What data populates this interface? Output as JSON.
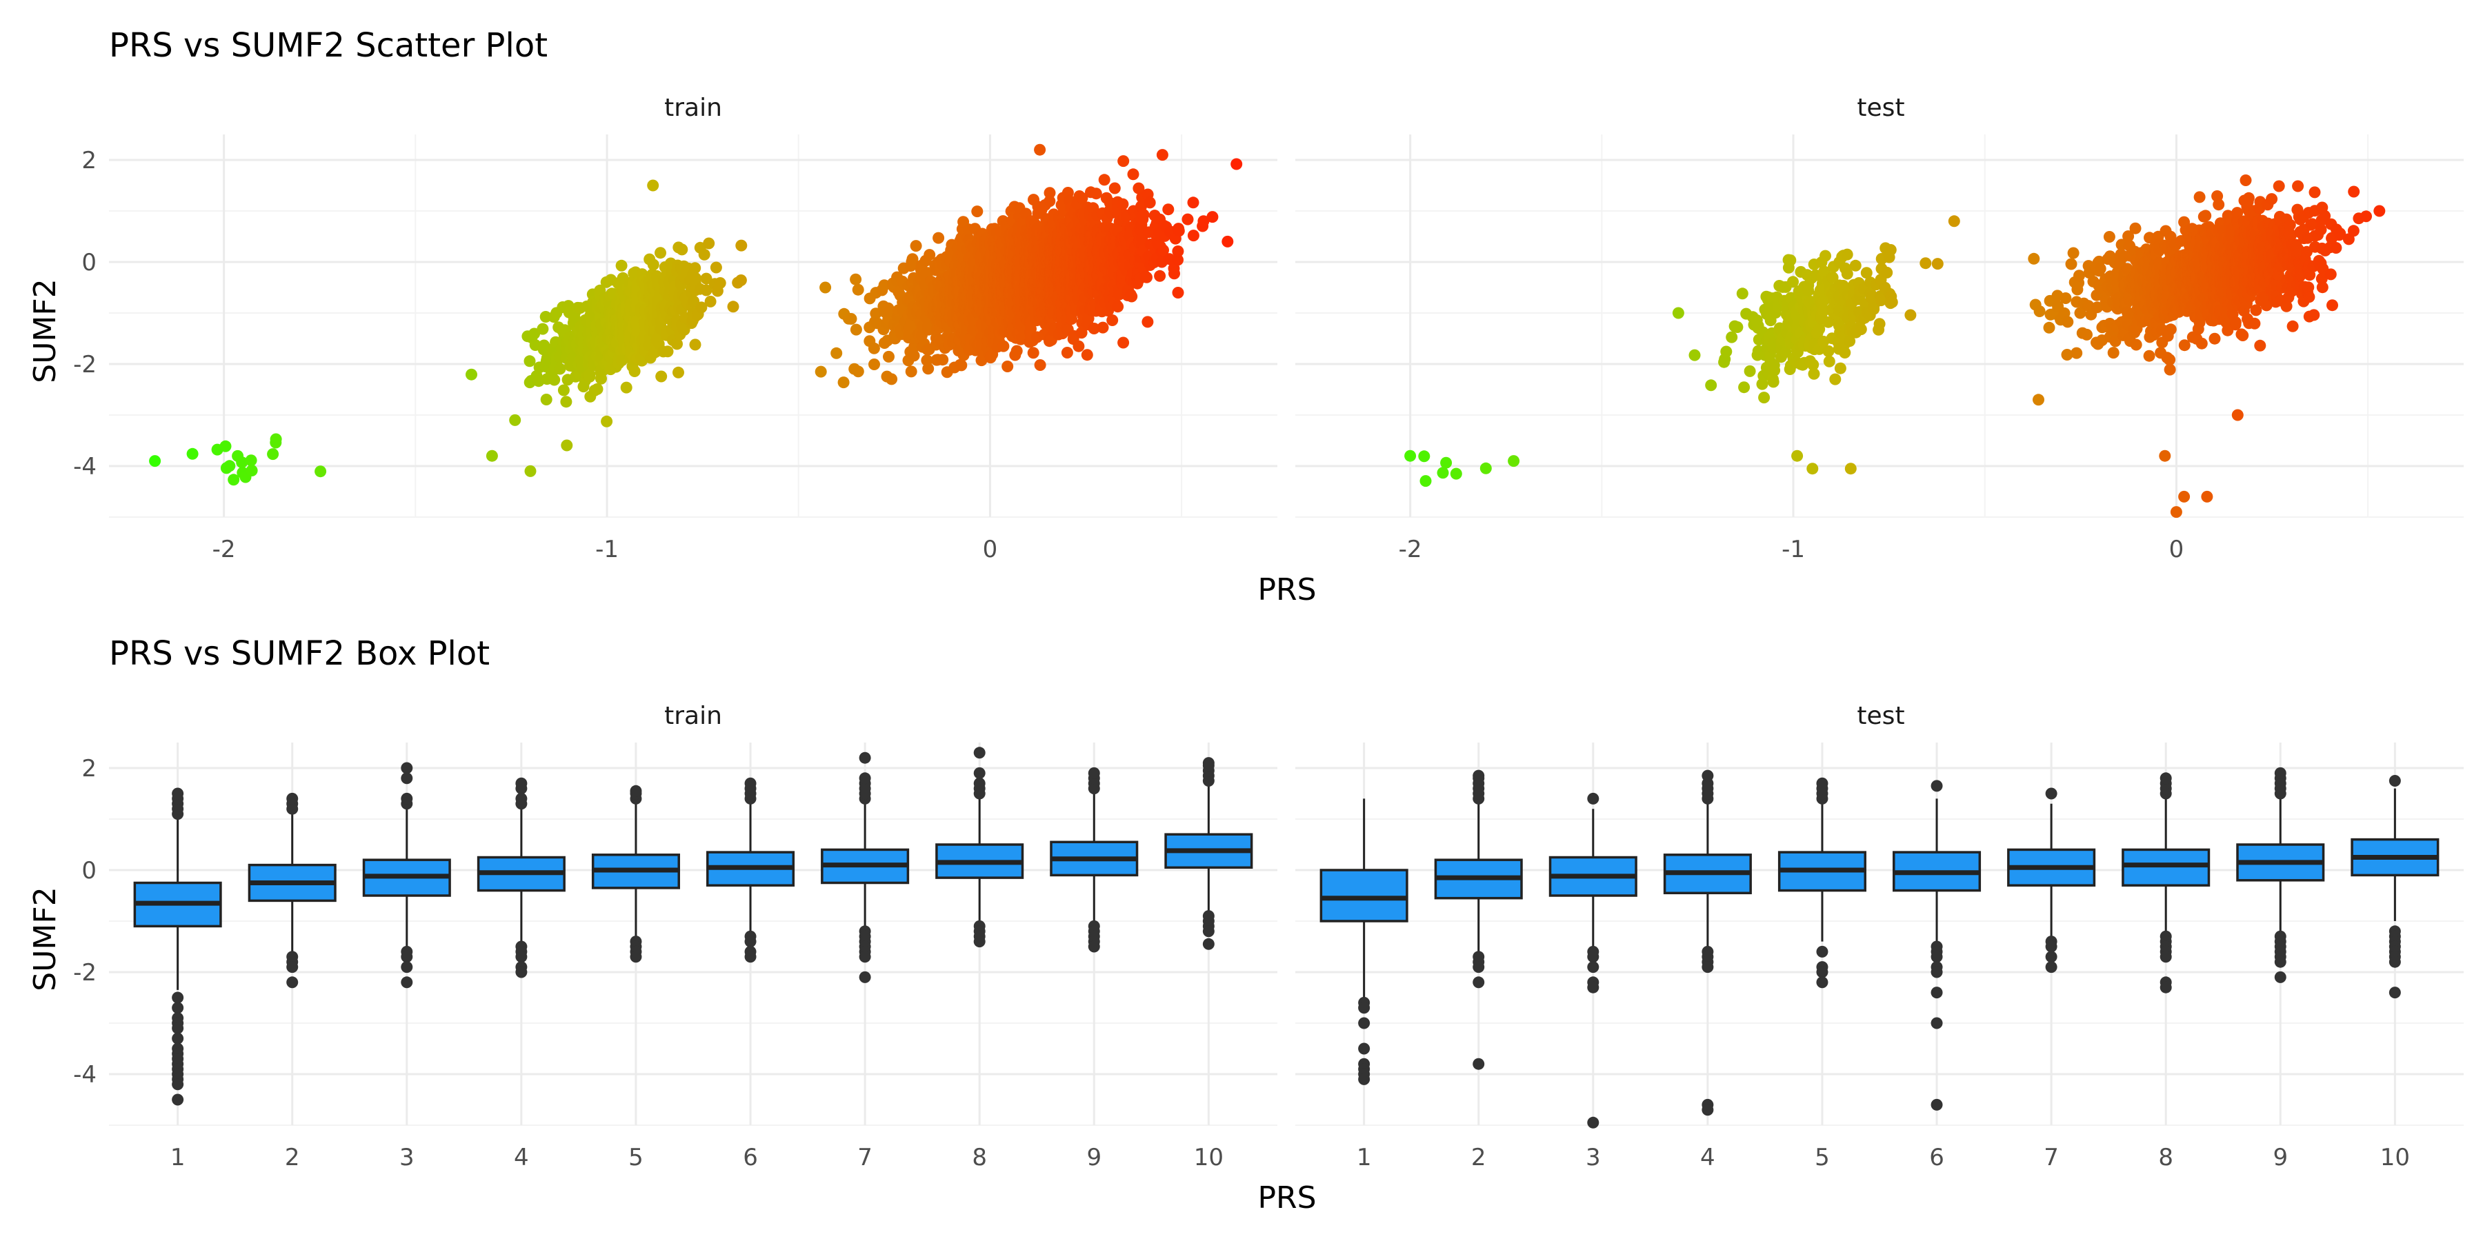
{
  "figure": {
    "scatter_title": "PRS vs SUMF2 Scatter Plot",
    "box_title": "PRS vs SUMF2 Box Plot",
    "x_axis_label": "PRS",
    "y_axis_label": "SUMF2",
    "panels": [
      "train",
      "test"
    ]
  },
  "colors": {
    "gradient_low": "#33ff00",
    "gradient_mid": "#c4b800",
    "gradient_high": "#ff2200",
    "box_fill": "#2196f3",
    "box_line": "#222222",
    "outlier": "#333333"
  },
  "chart_data": [
    {
      "type": "scatter",
      "title": "PRS vs SUMF2 Scatter Plot",
      "xlabel": "PRS",
      "ylabel": "SUMF2",
      "facets": [
        "train",
        "test"
      ],
      "xlim": [
        -2.3,
        0.75
      ],
      "ylim": [
        -5.0,
        2.5
      ],
      "x_ticks": [
        -2,
        -1,
        0
      ],
      "y_ticks": [
        2,
        0,
        -2,
        -4
      ],
      "grid": true,
      "color_encoding": "gradient by PRS (green low to red high), no legend",
      "series": [
        {
          "facet": "train",
          "clusters": [
            {
              "center": [
                -1.97,
                -3.9
              ],
              "sd": [
                0.08,
                0.28
              ],
              "n": 16
            },
            {
              "center": [
                -0.95,
                -1.2
              ],
              "sd": [
                0.1,
                0.55
              ],
              "n": 700,
              "corr": 0.55
            },
            {
              "center": [
                0.1,
                -0.3
              ],
              "sd": [
                0.15,
                0.6
              ],
              "n": 3000,
              "corr": 0.5
            }
          ],
          "points": [
            [
              -2.18,
              -3.9
            ],
            [
              -1.2,
              -4.1
            ],
            [
              -1.3,
              -3.8
            ],
            [
              -1.24,
              -3.1
            ],
            [
              -0.88,
              1.5
            ],
            [
              0.13,
              2.2
            ],
            [
              0.45,
              2.1
            ],
            [
              -0.43,
              -0.5
            ],
            [
              0.62,
              0.4
            ]
          ]
        },
        {
          "facet": "test",
          "clusters": [
            {
              "center": [
                -1.86,
                -3.9
              ],
              "sd": [
                0.06,
                0.25
              ],
              "n": 5
            },
            {
              "center": [
                -0.95,
                -1.1
              ],
              "sd": [
                0.1,
                0.55
              ],
              "n": 320,
              "corr": 0.5
            },
            {
              "center": [
                0.08,
                -0.2
              ],
              "sd": [
                0.14,
                0.55
              ],
              "n": 1500,
              "corr": 0.45
            }
          ],
          "points": [
            [
              -2.0,
              -3.8
            ],
            [
              -1.88,
              -4.15
            ],
            [
              -1.73,
              -3.9
            ],
            [
              -1.3,
              -1.0
            ],
            [
              -0.99,
              -3.8
            ],
            [
              -0.95,
              -4.05
            ],
            [
              -0.85,
              -4.05
            ],
            [
              0.0,
              -4.9
            ],
            [
              0.02,
              -4.6
            ],
            [
              0.08,
              -4.6
            ],
            [
              -0.03,
              -3.8
            ],
            [
              0.53,
              1.0
            ],
            [
              -0.58,
              0.8
            ],
            [
              -0.36,
              -2.7
            ],
            [
              0.16,
              -3.0
            ]
          ]
        }
      ]
    },
    {
      "type": "box",
      "title": "PRS vs SUMF2 Box Plot",
      "xlabel": "PRS",
      "ylabel": "SUMF2",
      "facets": [
        "train",
        "test"
      ],
      "categories": [
        "1",
        "2",
        "3",
        "4",
        "5",
        "6",
        "7",
        "8",
        "9",
        "10"
      ],
      "ylim": [
        -5.0,
        2.5
      ],
      "y_ticks": [
        2,
        0,
        -2,
        -4
      ],
      "grid": true,
      "series": [
        {
          "facet": "train",
          "boxes": [
            {
              "q1": -1.1,
              "median": -0.65,
              "q3": -0.25,
              "whisker_low": -2.35,
              "whisker_high": 1.0,
              "outliers": [
                1.1,
                1.2,
                1.3,
                1.4,
                1.5,
                -2.5,
                -2.7,
                -2.9,
                -3.0,
                -3.1,
                -3.3,
                -3.5,
                -3.6,
                -3.7,
                -3.8,
                -3.9,
                -4.0,
                -4.1,
                -4.2,
                -4.5
              ]
            },
            {
              "q1": -0.6,
              "median": -0.25,
              "q3": 0.1,
              "whisker_low": -1.6,
              "whisker_high": 1.1,
              "outliers": [
                1.2,
                1.3,
                1.4,
                -1.7,
                -1.8,
                -1.9,
                -2.2
              ]
            },
            {
              "q1": -0.5,
              "median": -0.12,
              "q3": 0.2,
              "whisker_low": -1.5,
              "whisker_high": 1.2,
              "outliers": [
                1.3,
                1.4,
                1.8,
                2.0,
                -1.6,
                -1.7,
                -1.9,
                -2.2
              ]
            },
            {
              "q1": -0.4,
              "median": -0.05,
              "q3": 0.25,
              "whisker_low": -1.4,
              "whisker_high": 1.2,
              "outliers": [
                1.3,
                1.4,
                1.6,
                1.7,
                -1.5,
                -1.6,
                -1.7,
                -1.9,
                -2.0
              ]
            },
            {
              "q1": -0.35,
              "median": 0.0,
              "q3": 0.3,
              "whisker_low": -1.3,
              "whisker_high": 1.3,
              "outliers": [
                1.4,
                1.5,
                1.55,
                -1.4,
                -1.5,
                -1.6,
                -1.7
              ]
            },
            {
              "q1": -0.3,
              "median": 0.05,
              "q3": 0.35,
              "whisker_low": -1.2,
              "whisker_high": 1.3,
              "outliers": [
                1.4,
                1.5,
                1.6,
                1.7,
                -1.3,
                -1.4,
                -1.6,
                -1.7
              ]
            },
            {
              "q1": -0.25,
              "median": 0.1,
              "q3": 0.4,
              "whisker_low": -1.1,
              "whisker_high": 1.3,
              "outliers": [
                1.4,
                1.5,
                1.6,
                1.7,
                1.8,
                2.2,
                -1.2,
                -1.3,
                -1.4,
                -1.5,
                -1.6,
                -1.7,
                -2.1
              ]
            },
            {
              "q1": -0.15,
              "median": 0.15,
              "q3": 0.5,
              "whisker_low": -1.0,
              "whisker_high": 1.4,
              "outliers": [
                1.5,
                1.6,
                1.7,
                1.9,
                2.3,
                -1.1,
                -1.2,
                -1.3,
                -1.4
              ]
            },
            {
              "q1": -0.1,
              "median": 0.22,
              "q3": 0.55,
              "whisker_low": -1.0,
              "whisker_high": 1.5,
              "outliers": [
                1.6,
                1.7,
                1.8,
                1.9,
                -1.1,
                -1.2,
                -1.3,
                -1.4,
                -1.5
              ]
            },
            {
              "q1": 0.05,
              "median": 0.38,
              "q3": 0.7,
              "whisker_low": -0.85,
              "whisker_high": 1.65,
              "outliers": [
                1.75,
                1.85,
                1.95,
                2.05,
                2.1,
                -0.9,
                -1.0,
                -1.1,
                -1.2,
                -1.45
              ]
            }
          ]
        },
        {
          "facet": "test",
          "boxes": [
            {
              "q1": -1.0,
              "median": -0.55,
              "q3": 0.0,
              "whisker_low": -2.5,
              "whisker_high": 1.4,
              "outliers": [
                -2.6,
                -2.7,
                -3.0,
                -3.5,
                -3.8,
                -3.9,
                -4.0,
                -4.1
              ]
            },
            {
              "q1": -0.55,
              "median": -0.15,
              "q3": 0.2,
              "whisker_low": -1.6,
              "whisker_high": 1.3,
              "outliers": [
                1.4,
                1.5,
                1.6,
                1.7,
                1.8,
                1.85,
                -1.7,
                -1.8,
                -1.9,
                -2.2,
                -3.8
              ]
            },
            {
              "q1": -0.5,
              "median": -0.12,
              "q3": 0.25,
              "whisker_low": -1.5,
              "whisker_high": 1.2,
              "outliers": [
                1.4,
                -1.6,
                -1.7,
                -1.9,
                -2.2,
                -2.3,
                -4.95
              ]
            },
            {
              "q1": -0.45,
              "median": -0.05,
              "q3": 0.3,
              "whisker_low": -1.5,
              "whisker_high": 1.3,
              "outliers": [
                1.4,
                1.5,
                1.6,
                1.7,
                1.85,
                -1.6,
                -1.7,
                -1.8,
                -1.9,
                -4.6,
                -4.7
              ]
            },
            {
              "q1": -0.4,
              "median": 0.0,
              "q3": 0.35,
              "whisker_low": -1.4,
              "whisker_high": 1.3,
              "outliers": [
                1.4,
                1.5,
                1.6,
                1.7,
                -1.6,
                -1.9,
                -2.0,
                -2.2
              ]
            },
            {
              "q1": -0.4,
              "median": -0.05,
              "q3": 0.35,
              "whisker_low": -1.4,
              "whisker_high": 1.4,
              "outliers": [
                1.65,
                -1.5,
                -1.6,
                -1.7,
                -1.9,
                -2.0,
                -2.4,
                -3.0,
                -4.6
              ]
            },
            {
              "q1": -0.3,
              "median": 0.05,
              "q3": 0.4,
              "whisker_low": -1.3,
              "whisker_high": 1.3,
              "outliers": [
                1.5,
                -1.4,
                -1.5,
                -1.7,
                -1.9
              ]
            },
            {
              "q1": -0.3,
              "median": 0.1,
              "q3": 0.4,
              "whisker_low": -1.2,
              "whisker_high": 1.4,
              "outliers": [
                1.5,
                1.6,
                1.7,
                1.8,
                -1.3,
                -1.4,
                -1.5,
                -1.6,
                -1.7,
                -2.2,
                -2.3
              ]
            },
            {
              "q1": -0.2,
              "median": 0.15,
              "q3": 0.5,
              "whisker_low": -1.2,
              "whisker_high": 1.4,
              "outliers": [
                1.5,
                1.6,
                1.7,
                1.8,
                1.9,
                -1.3,
                -1.4,
                -1.5,
                -1.6,
                -1.7,
                -1.8,
                -2.1
              ]
            },
            {
              "q1": -0.1,
              "median": 0.25,
              "q3": 0.6,
              "whisker_low": -1.0,
              "whisker_high": 1.6,
              "outliers": [
                1.75,
                -1.2,
                -1.3,
                -1.4,
                -1.5,
                -1.6,
                -1.7,
                -1.8,
                -2.4
              ]
            }
          ]
        }
      ]
    }
  ]
}
